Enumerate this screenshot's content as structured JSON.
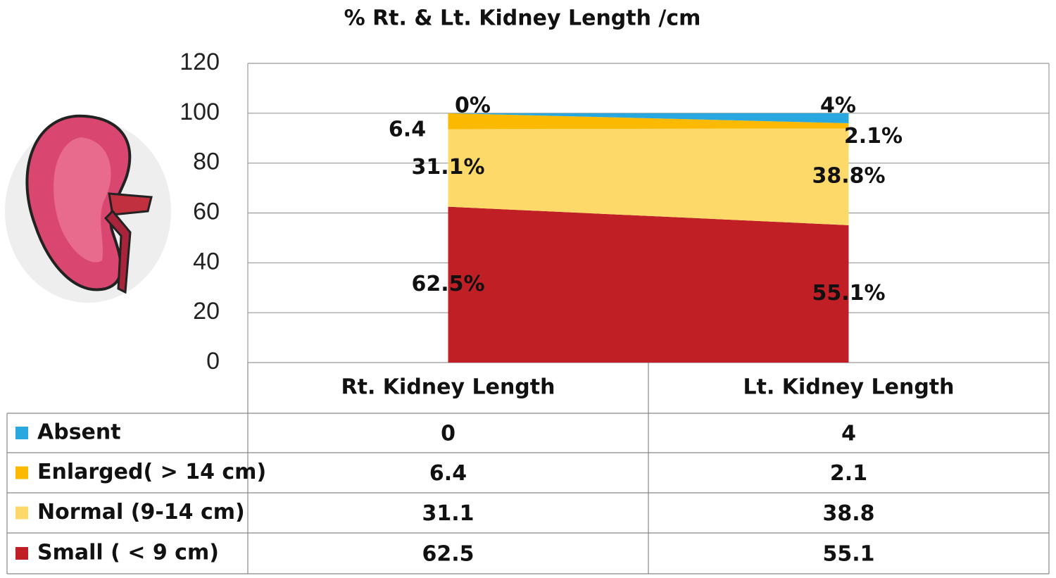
{
  "chart_data": {
    "type": "stacked_area",
    "title": "%  Rt. & Lt. Kidney  Length /cm",
    "categories": [
      "Rt. Kidney Length",
      "Lt. Kidney Length"
    ],
    "series": [
      {
        "name": "Absent",
        "color": "#29a8e0",
        "values": [
          0,
          4
        ],
        "value_labels": [
          "0%",
          "4%"
        ]
      },
      {
        "name": "Enlarged( > 14 cm)",
        "color": "#fbb900",
        "values": [
          6.4,
          2.1
        ],
        "value_labels": [
          "6.4",
          "2.1%"
        ]
      },
      {
        "name": "Normal (9-14 cm)",
        "color": "#fdd969",
        "values": [
          31.1,
          38.8
        ],
        "value_labels": [
          "31.1%",
          "38.8%"
        ]
      },
      {
        "name": "Small ( < 9 cm)",
        "color": "#c01f26",
        "values": [
          62.5,
          55.1
        ],
        "value_labels": [
          "62.5%",
          "55.1%"
        ]
      }
    ],
    "ylim": [
      0,
      120
    ],
    "yticks": [
      0,
      20,
      40,
      60,
      80,
      100,
      120
    ],
    "grid": true
  }
}
